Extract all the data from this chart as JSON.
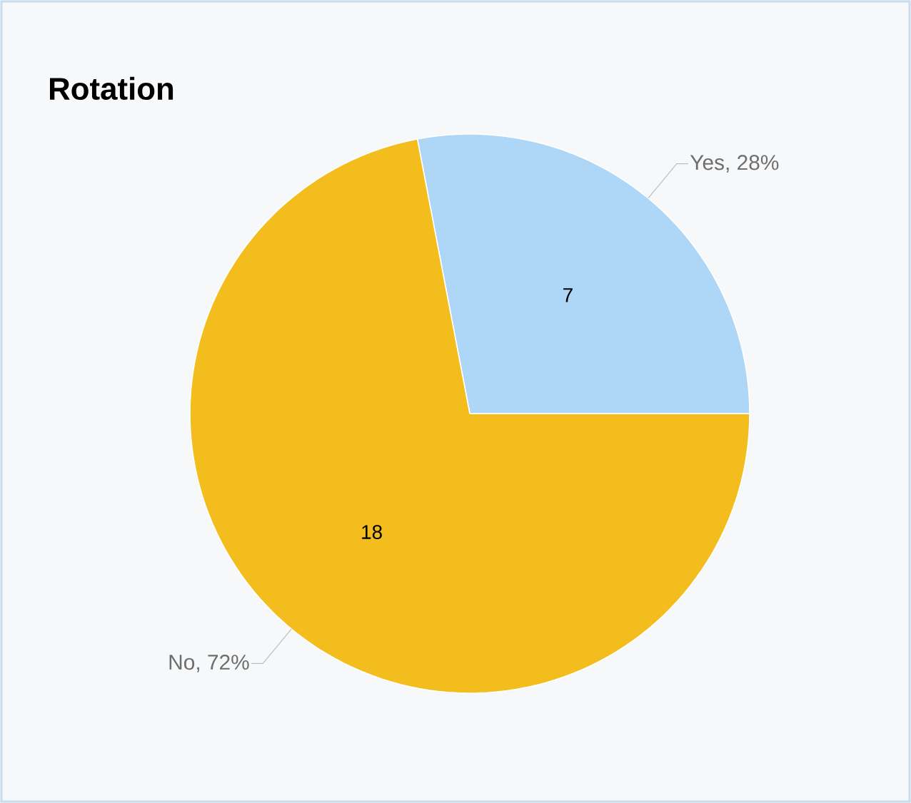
{
  "chart_data": {
    "type": "pie",
    "title": "Rotation",
    "categories": [
      "Yes, 28%",
      "No, 72%"
    ],
    "values": [
      7,
      18
    ],
    "colors": [
      "#aed6f6",
      "#f2bd1d"
    ],
    "data_labels": true
  }
}
